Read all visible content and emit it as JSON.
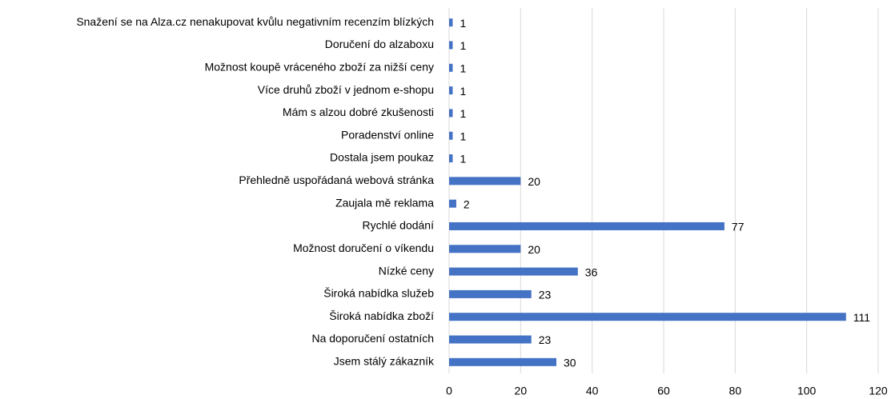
{
  "chart_data": {
    "type": "bar",
    "orientation": "horizontal",
    "categories": [
      "Snažení se na Alza.cz nenakupovat kvůlu negativním recenzím blízkých",
      "Doručení do alzaboxu",
      "Možnost koupě vráceného zboží za nižší ceny",
      "Více druhů zboží v jednom e-shopu",
      "Mám s alzou dobré zkušenosti",
      "Poradenství online",
      "Dostala jsem poukaz",
      "Přehledně uspořádaná webová stránka",
      "Zaujala mě reklama",
      "Rychlé dodání",
      "Možnost doručení o víkendu",
      "Nízké ceny",
      "Široká nabídka služeb",
      "Široká nabídka zboží",
      "Na doporučení ostatních",
      "Jsem stálý zákazník"
    ],
    "values": [
      1,
      1,
      1,
      1,
      1,
      1,
      1,
      20,
      2,
      77,
      20,
      36,
      23,
      111,
      23,
      30
    ],
    "color": "#4472c4",
    "xlim": [
      0,
      120
    ],
    "xticks": [
      0,
      20,
      40,
      60,
      80,
      100,
      120
    ],
    "grid": true
  }
}
